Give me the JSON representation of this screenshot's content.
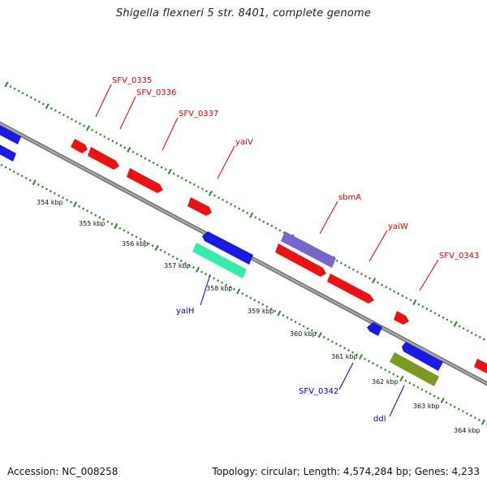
{
  "title": "Shigella flexneri 5 str. 8401, complete genome",
  "footer": {
    "accession": "Accession: NC_008258",
    "summary": "Topology: circular; Length: 4,574,284 bp; Genes: 4,233"
  },
  "colors": {
    "backbone": "#8a8a8a",
    "tick": "#228b22",
    "red_gene": "#ee1111",
    "blue_gene": "#1a1ae6",
    "purple_gene": "#7766cc",
    "teal_gene": "#33eeaa",
    "olive_gene": "#7a9a22",
    "label_red": "#dd0000",
    "label_blue": "#0000bb"
  },
  "ticks": [
    {
      "label": "354 kbp"
    },
    {
      "label": "355 kbp"
    },
    {
      "label": "356 kbp"
    },
    {
      "label": "357 kbp"
    },
    {
      "label": "358 kbp"
    },
    {
      "label": "359 kbp"
    },
    {
      "label": "360 kbp"
    },
    {
      "label": "361 kbp"
    },
    {
      "label": "362 kbp"
    },
    {
      "label": "363 kbp"
    },
    {
      "label": "364 kbp"
    }
  ],
  "gene_labels": {
    "forward": [
      "SFV_0335",
      "SFV_0336",
      "SFV_0337",
      "yaiV",
      "sbmA",
      "yaiW",
      "SFV_0343"
    ],
    "reverse": [
      "yaiH",
      "SFV_0342",
      "ddl"
    ]
  }
}
